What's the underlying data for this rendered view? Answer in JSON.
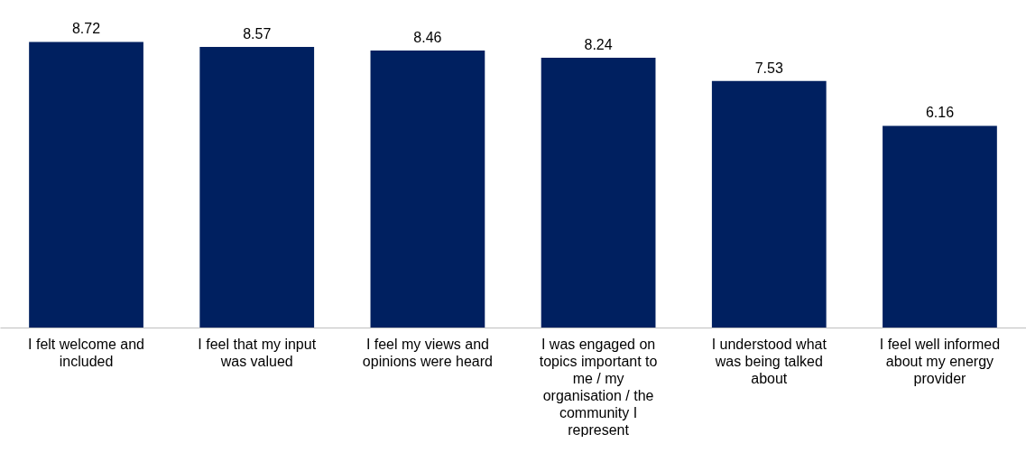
{
  "chart_data": {
    "type": "bar",
    "categories": [
      "I felt welcome and included",
      "I feel that my input was valued",
      "I feel my views and opinions were heard",
      "I was engaged on topics important to me / my organisation / the community I represent",
      "I understood what was being talked about",
      "I feel well informed about my energy provider"
    ],
    "values": [
      8.72,
      8.57,
      8.46,
      8.24,
      7.53,
      6.16
    ],
    "color": "#002060",
    "ylim": [
      0,
      10
    ],
    "data_labels": true
  }
}
